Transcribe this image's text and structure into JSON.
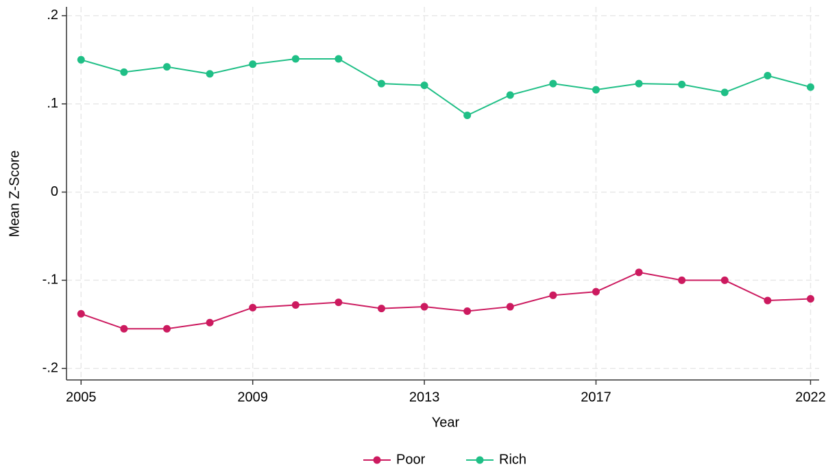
{
  "chart_data": {
    "type": "line",
    "x_label": "Year",
    "y_label": "Mean Z-Score",
    "x": [
      2005,
      2006,
      2007,
      2008,
      2009,
      2010,
      2011,
      2012,
      2013,
      2014,
      2015,
      2016,
      2017,
      2018,
      2019,
      2020,
      2021,
      2022
    ],
    "series": [
      {
        "name": "Poor",
        "color": "#cc1a5f",
        "values": [
          -0.138,
          -0.155,
          -0.155,
          -0.148,
          -0.131,
          -0.128,
          -0.125,
          -0.132,
          -0.13,
          -0.135,
          -0.13,
          -0.117,
          -0.113,
          -0.091,
          -0.1,
          -0.1,
          -0.123,
          -0.121
        ]
      },
      {
        "name": "Rich",
        "color": "#1fbf86",
        "values": [
          0.15,
          0.136,
          0.142,
          0.134,
          0.145,
          0.151,
          0.151,
          0.123,
          0.121,
          0.087,
          0.11,
          0.123,
          0.116,
          0.123,
          0.122,
          0.113,
          0.132,
          0.119
        ]
      }
    ],
    "xlim": [
      2004.66,
      2022.2
    ],
    "ylim": [
      -0.213,
      0.21
    ],
    "xticks": [
      2005,
      2009,
      2013,
      2017,
      2022
    ],
    "yticks": [
      {
        "value": 0.2,
        "label": ".2"
      },
      {
        "value": 0.1,
        "label": ".1"
      },
      0,
      {
        "value": -0.1,
        "label": "-.1"
      },
      {
        "value": -0.2,
        "label": "-.2"
      }
    ],
    "grid": true,
    "legend": "bottom"
  }
}
